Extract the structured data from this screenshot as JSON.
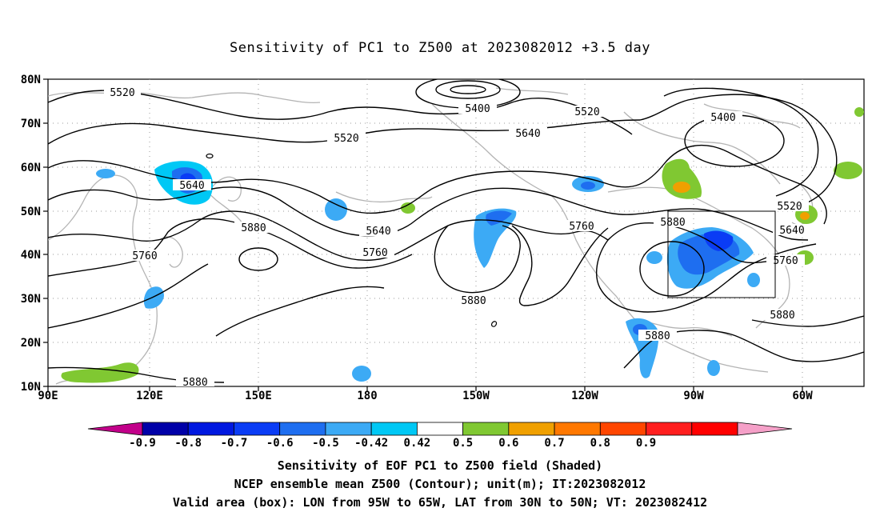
{
  "title": "Sensitivity of PC1 to Z500 at 2023082012 +3.5 day",
  "lat_labels": [
    "80N",
    "70N",
    "60N",
    "50N",
    "40N",
    "30N",
    "20N",
    "10N"
  ],
  "lon_labels": [
    "90E",
    "120E",
    "150E",
    "180",
    "150W",
    "120W",
    "90W",
    "60W"
  ],
  "contour_labels": [
    "5520",
    "5400",
    "5520",
    "5400",
    "5640",
    "5520",
    "5640",
    "5520",
    "5760",
    "5880",
    "5640",
    "5760",
    "5760",
    "5880",
    "5640",
    "5760",
    "5880",
    "5880",
    "5880",
    "5880"
  ],
  "colorbar": {
    "labels": [
      "-0.9",
      "-0.8",
      "-0.7",
      "-0.6",
      "-0.5",
      "-0.42",
      "0.42",
      "0.5",
      "0.6",
      "0.7",
      "0.8",
      "0.9"
    ],
    "colors": [
      "#c2008a",
      "#0000a8",
      "#0018e0",
      "#0a3cf5",
      "#1e6ef0",
      "#3caaf5",
      "#00c8f5",
      "#ffffff",
      "#80c832",
      "#f0a000",
      "#ff7800",
      "#ff4600",
      "#ff1e1e",
      "#ff0000",
      "#f5a0c8"
    ]
  },
  "captions": [
    "Sensitivity of EOF PC1 to Z500 field (Shaded)",
    "NCEP ensemble mean Z500 (Contour); unit(m); IT:2023082012",
    "Valid area (box): LON from 95W to 65W, LAT from 30N to 50N; VT: 2023082412"
  ]
}
